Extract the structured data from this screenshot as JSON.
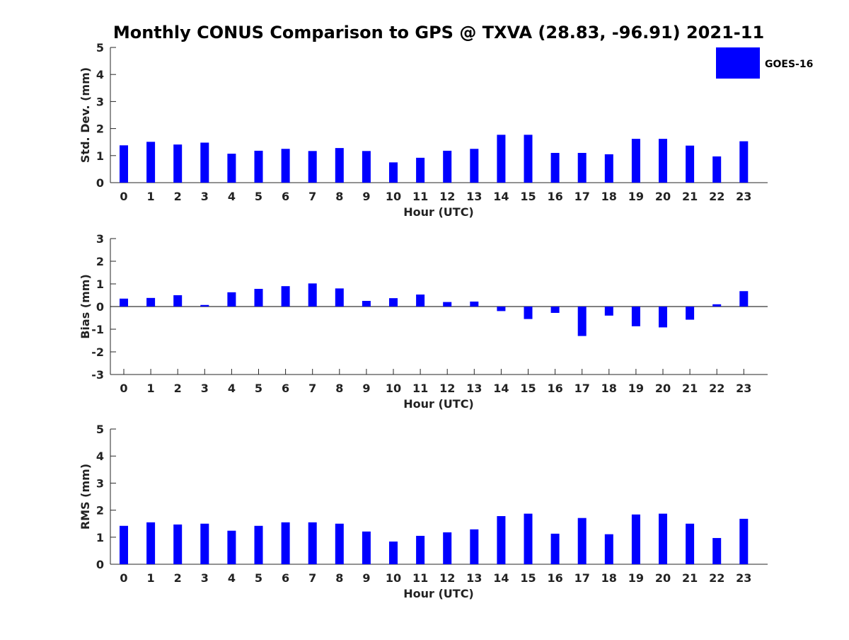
{
  "title": "Monthly CONUS Comparison to GPS @ TXVA (28.83, -96.91) 2021-11",
  "legend": {
    "label": "GOES-16",
    "color": "#0000ff",
    "placement": "top-right"
  },
  "chart_data": [
    {
      "type": "bar",
      "ylabel": "Std. Dev. (mm)",
      "xlabel": "Hour (UTC)",
      "ylim": [
        0,
        5
      ],
      "yticks": [
        0,
        1,
        2,
        3,
        4,
        5
      ],
      "categories": [
        "0",
        "1",
        "2",
        "3",
        "4",
        "5",
        "6",
        "7",
        "8",
        "9",
        "10",
        "11",
        "12",
        "13",
        "14",
        "15",
        "16",
        "17",
        "18",
        "19",
        "20",
        "21",
        "22",
        "23"
      ],
      "series": [
        {
          "values": [
            1.38,
            1.51,
            1.41,
            1.48,
            1.07,
            1.18,
            1.25,
            1.17,
            1.28,
            1.17,
            0.75,
            0.92,
            1.18,
            1.25,
            1.77,
            1.77,
            1.1,
            1.1,
            1.05,
            1.62,
            1.62,
            1.37,
            0.97,
            1.53
          ]
        }
      ]
    },
    {
      "type": "bar",
      "ylabel": "Bias (mm)",
      "xlabel": "Hour (UTC)",
      "ylim": [
        -3,
        3
      ],
      "yticks": [
        -3,
        -2,
        -1,
        0,
        1,
        2,
        3
      ],
      "zero_line": true,
      "categories": [
        "0",
        "1",
        "2",
        "3",
        "4",
        "5",
        "6",
        "7",
        "8",
        "9",
        "10",
        "11",
        "12",
        "13",
        "14",
        "15",
        "16",
        "17",
        "18",
        "19",
        "20",
        "21",
        "22",
        "23"
      ],
      "series": [
        {
          "values": [
            0.35,
            0.38,
            0.5,
            0.07,
            0.63,
            0.78,
            0.9,
            1.02,
            0.8,
            0.25,
            0.37,
            0.53,
            0.2,
            0.22,
            -0.2,
            -0.55,
            -0.28,
            -1.3,
            -0.4,
            -0.87,
            -0.92,
            -0.58,
            0.1,
            0.68
          ]
        }
      ]
    },
    {
      "type": "bar",
      "ylabel": "RMS (mm)",
      "xlabel": "Hour (UTC)",
      "ylim": [
        0,
        5
      ],
      "yticks": [
        0,
        1,
        2,
        3,
        4,
        5
      ],
      "categories": [
        "0",
        "1",
        "2",
        "3",
        "4",
        "5",
        "6",
        "7",
        "8",
        "9",
        "10",
        "11",
        "12",
        "13",
        "14",
        "15",
        "16",
        "17",
        "18",
        "19",
        "20",
        "21",
        "22",
        "23"
      ],
      "series": [
        {
          "values": [
            1.42,
            1.55,
            1.47,
            1.5,
            1.24,
            1.42,
            1.55,
            1.55,
            1.5,
            1.21,
            0.84,
            1.05,
            1.18,
            1.29,
            1.78,
            1.87,
            1.13,
            1.71,
            1.11,
            1.84,
            1.87,
            1.5,
            0.97,
            1.68
          ]
        }
      ]
    }
  ]
}
